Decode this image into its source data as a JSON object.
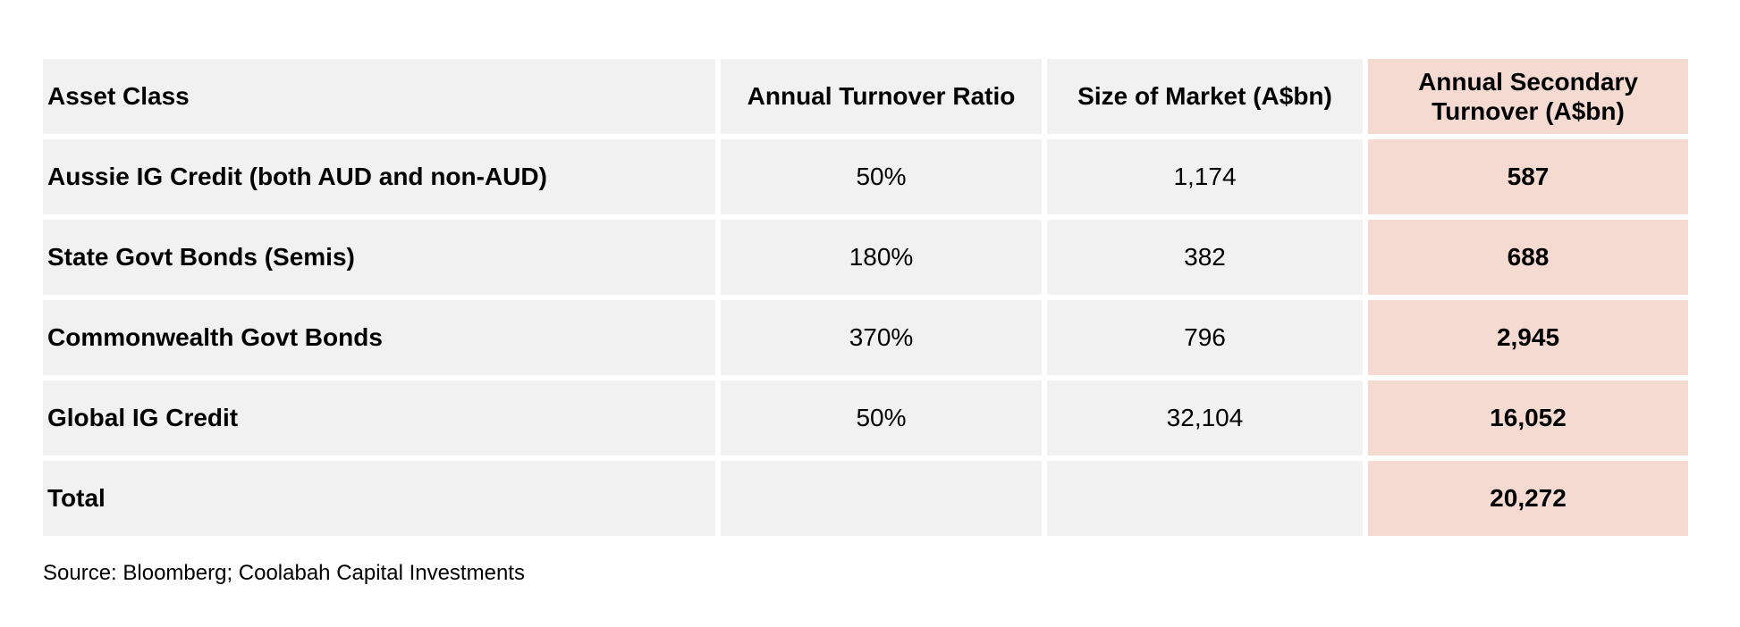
{
  "table": {
    "columns": [
      "Asset Class",
      "Annual Turnover Ratio",
      "Size of Market (A$bn)",
      "Annual Secondary Turnover (A$bn)"
    ],
    "rows": [
      {
        "cells": [
          "Aussie IG Credit (both AUD and non-AUD)",
          "50%",
          "1,174",
          "587"
        ]
      },
      {
        "cells": [
          "State Govt Bonds (Semis)",
          "180%",
          "382",
          "688"
        ]
      },
      {
        "cells": [
          "Commonwealth Govt Bonds",
          "370%",
          "796",
          "2,945"
        ]
      },
      {
        "cells": [
          "Global IG Credit",
          "50%",
          "32,104",
          "16,052"
        ]
      },
      {
        "cells": [
          "Total",
          "",
          "",
          "20,272"
        ]
      }
    ]
  },
  "source": "Source: Bloomberg; Coolabah Capital Investments",
  "colors": {
    "page_bg": "#ffffff",
    "cell_bg": "#f1f1f1",
    "highlight_bg": "#f5dad2",
    "text_color": "#000000"
  }
}
